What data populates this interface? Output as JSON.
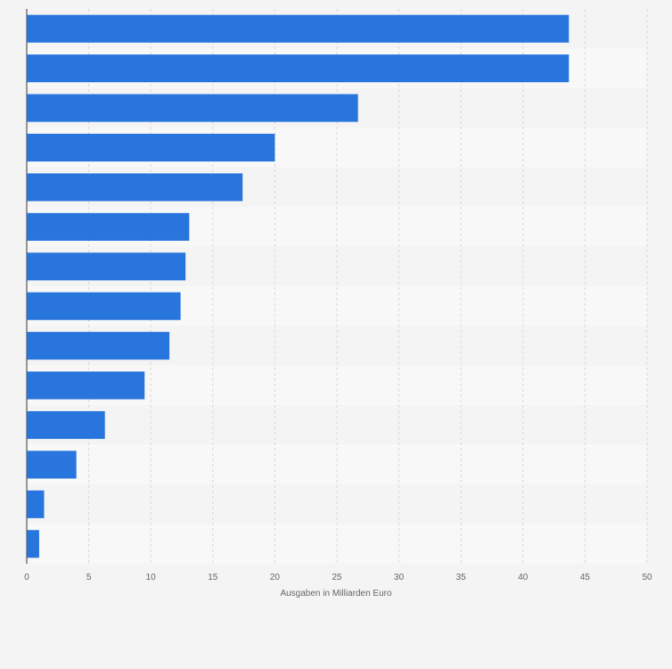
{
  "chart_data": {
    "type": "bar",
    "orientation": "horizontal",
    "categories": [
      "",
      "",
      "",
      "",
      "",
      "",
      "",
      "",
      "",
      "",
      "",
      "",
      "",
      ""
    ],
    "values": [
      43.7,
      43.7,
      26.7,
      20.0,
      17.4,
      13.1,
      12.8,
      12.4,
      11.5,
      9.5,
      6.3,
      4.0,
      1.4,
      1.0
    ],
    "xlabel": "Ausgaben in Milliarden Euro",
    "ylabel": "",
    "xlim": [
      0,
      50
    ],
    "xticks": [
      "0",
      "5",
      "10",
      "15",
      "20",
      "25",
      "30",
      "35",
      "40",
      "45",
      "50"
    ],
    "grid": true,
    "bar_color": "#2876dd",
    "stripe_colors": [
      "#f4f4f4",
      "#f8f8f8"
    ]
  }
}
